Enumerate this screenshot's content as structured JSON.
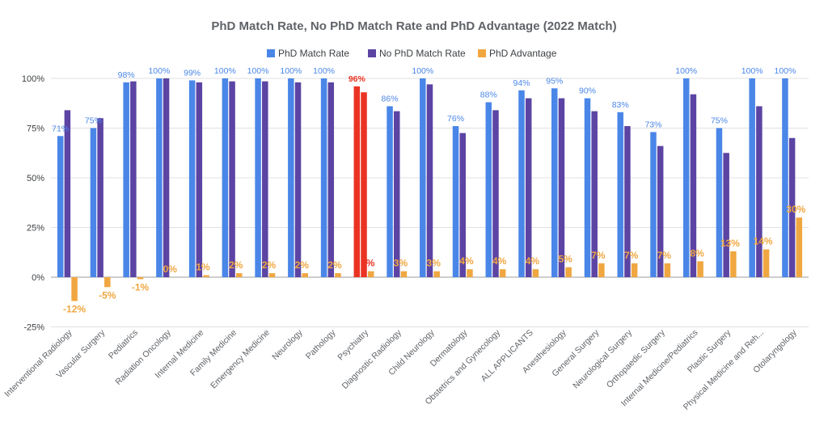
{
  "chart_data": {
    "type": "bar",
    "title": "PhD Match Rate, No PhD Match Rate and PhD Advantage (2022 Match)",
    "xlabel": "",
    "ylabel": "",
    "ylim": [
      -0.25,
      1.0
    ],
    "y_ticks": [
      {
        "value": 1.0,
        "label": "100%"
      },
      {
        "value": 0.75,
        "label": "75%"
      },
      {
        "value": 0.5,
        "label": "50%"
      },
      {
        "value": 0.25,
        "label": "25%"
      },
      {
        "value": 0.0,
        "label": "0%"
      },
      {
        "value": -0.25,
        "label": "-25%"
      }
    ],
    "legend_position": "top-center",
    "categories": [
      "Interventional Radiology",
      "Vascular Surgery",
      "Pediatrics",
      "Radiation Oncology",
      "Internal Medicine",
      "Family Medicine",
      "Emergency Medicine",
      "Neurology",
      "Pathology",
      "Psychiatry",
      "Diagnostic Radiology",
      "Child Neurology",
      "Dermatology",
      "Obstetrics and Gynecology",
      "ALL APPLICANTS",
      "Anesthesiology",
      "General Surgery",
      "Neurological Surgery",
      "Orthopaedic Surgery",
      "Internal Medicine/Pediatrics",
      "Plastic Surgery",
      "Physical Medicine and Reh...",
      "Otolaryngology"
    ],
    "highlight_category": "Psychiatry",
    "highlight_color": "#ea3323",
    "series": [
      {
        "name": "PhD Match Rate",
        "color": "#4a86e8",
        "values": [
          0.71,
          0.75,
          0.98,
          1.0,
          0.99,
          1.0,
          1.0,
          1.0,
          1.0,
          0.96,
          0.86,
          1.0,
          0.76,
          0.88,
          0.94,
          0.95,
          0.9,
          0.83,
          0.73,
          1.0,
          0.75,
          1.0,
          1.0
        ],
        "labels": [
          "71%",
          "75%",
          "98%",
          "100%",
          "99%",
          "100%",
          "100%",
          "100%",
          "100%",
          "96%",
          "86%",
          "100%",
          "76%",
          "88%",
          "94%",
          "95%",
          "90%",
          "83%",
          "73%",
          "100%",
          "75%",
          "100%",
          "100%"
        ]
      },
      {
        "name": "No PhD Match Rate",
        "color": "#5b44a3",
        "values": [
          0.84,
          0.8,
          0.985,
          1.0,
          0.98,
          0.985,
          0.985,
          0.98,
          0.98,
          0.93,
          0.835,
          0.97,
          0.725,
          0.84,
          0.9,
          0.9,
          0.835,
          0.76,
          0.66,
          0.92,
          0.625,
          0.86,
          0.7
        ]
      },
      {
        "name": "PhD Advantage",
        "color": "#f0a741",
        "values": [
          -0.12,
          -0.05,
          -0.01,
          0.0,
          0.01,
          0.02,
          0.02,
          0.02,
          0.02,
          0.03,
          0.03,
          0.03,
          0.04,
          0.04,
          0.04,
          0.05,
          0.07,
          0.07,
          0.07,
          0.08,
          0.13,
          0.14,
          0.3
        ],
        "labels": [
          "-12%",
          "-5%",
          "-1%",
          "0%",
          "1%",
          "2%",
          "2%",
          "2%",
          "2%",
          "3%",
          "3%",
          "3%",
          "4%",
          "4%",
          "4%",
          "5%",
          "7%",
          "7%",
          "7%",
          "8%",
          "13%",
          "14%",
          "30%"
        ]
      }
    ]
  }
}
